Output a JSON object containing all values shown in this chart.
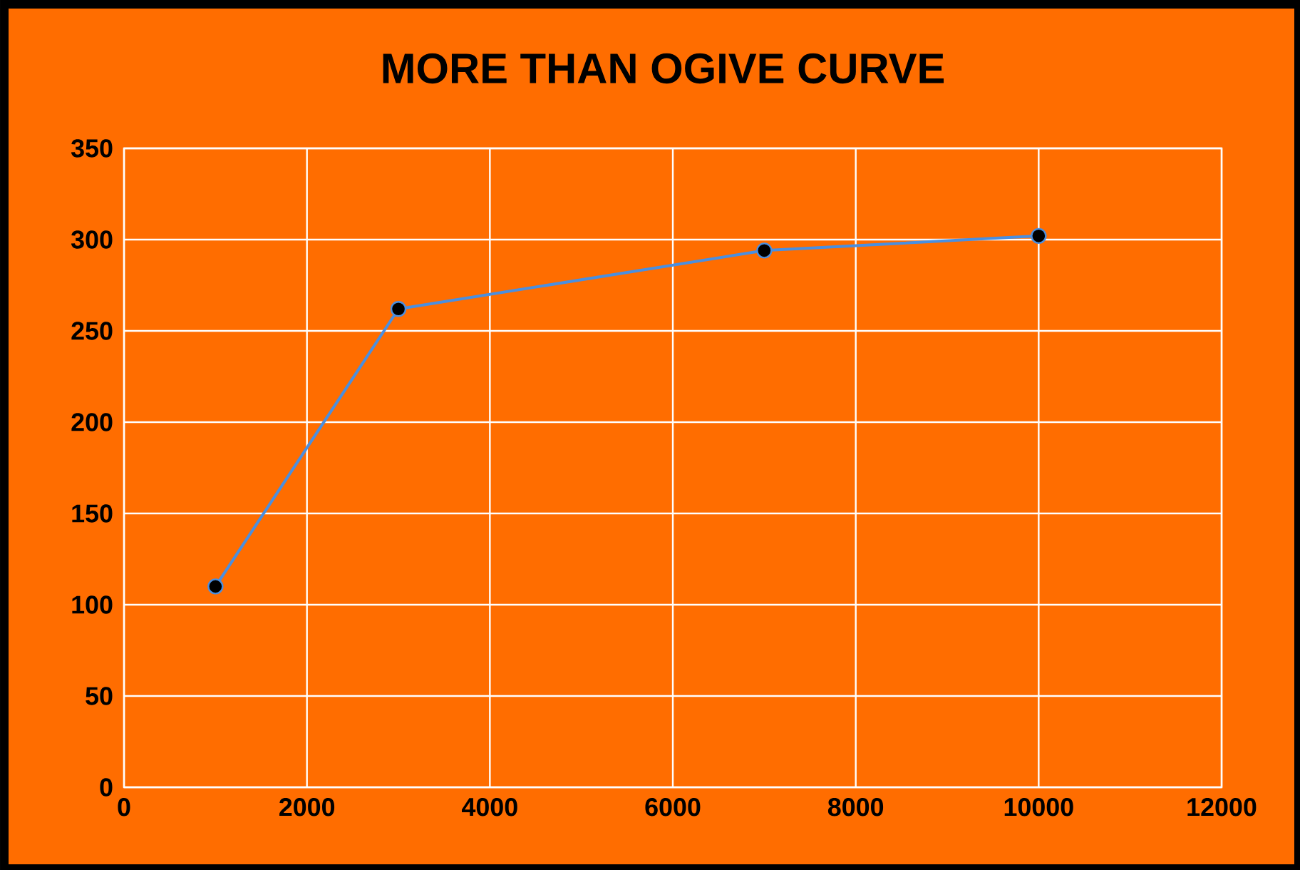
{
  "chart_data": {
    "type": "line",
    "title": "MORE THAN OGIVE CURVE",
    "x": [
      1000,
      3000,
      7000,
      10000
    ],
    "values": [
      110,
      262,
      294,
      302
    ],
    "color": "#4a8fe0",
    "marker": "circle",
    "grid": true,
    "xlim": [
      0,
      12000
    ],
    "xticks": [
      0,
      2000,
      4000,
      6000,
      8000,
      10000,
      12000
    ],
    "ylim": [
      0,
      350
    ],
    "yticks": [
      0,
      50,
      100,
      150,
      200,
      250,
      300,
      350
    ]
  }
}
